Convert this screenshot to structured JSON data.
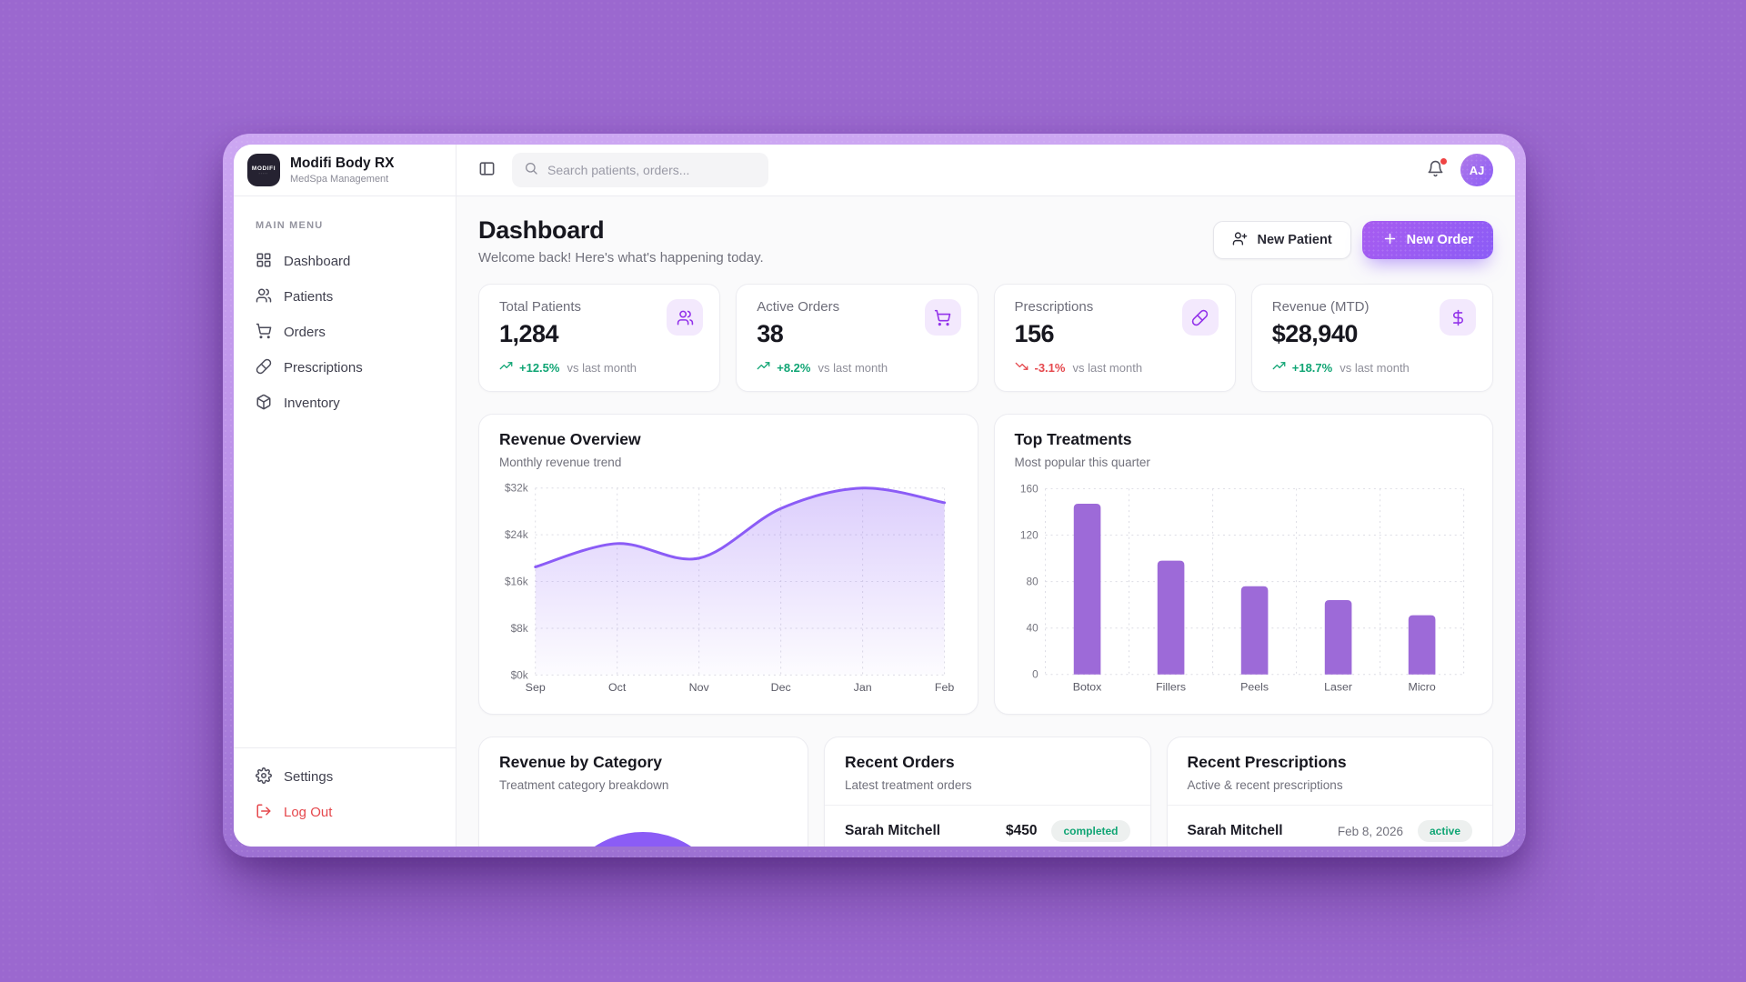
{
  "app": {
    "logo_text": "MODIFI",
    "name": "Modifi Body RX",
    "tagline": "MedSpa Management"
  },
  "sidebar": {
    "section_label": "MAIN MENU",
    "items": [
      {
        "label": "Dashboard",
        "icon": "layout-grid-icon"
      },
      {
        "label": "Patients",
        "icon": "users-icon"
      },
      {
        "label": "Orders",
        "icon": "shopping-cart-icon"
      },
      {
        "label": "Prescriptions",
        "icon": "pill-icon"
      },
      {
        "label": "Inventory",
        "icon": "package-icon"
      }
    ],
    "settings_label": "Settings",
    "logout_label": "Log Out"
  },
  "header": {
    "search_placeholder": "Search patients, orders...",
    "avatar_initials": "AJ"
  },
  "page": {
    "title": "Dashboard",
    "subtitle": "Welcome back! Here's what's happening today.",
    "new_patient_label": "New Patient",
    "new_order_label": "New Order"
  },
  "stats": [
    {
      "label": "Total Patients",
      "value": "1,284",
      "trend": "+12.5%",
      "direction": "up",
      "note": "vs last month",
      "icon": "users-icon"
    },
    {
      "label": "Active Orders",
      "value": "38",
      "trend": "+8.2%",
      "direction": "up",
      "note": "vs last month",
      "icon": "shopping-cart-icon"
    },
    {
      "label": "Prescriptions",
      "value": "156",
      "trend": "-3.1%",
      "direction": "down",
      "note": "vs last month",
      "icon": "pill-icon"
    },
    {
      "label": "Revenue (MTD)",
      "value": "$28,940",
      "trend": "+18.7%",
      "direction": "up",
      "note": "vs last month",
      "icon": "dollar-icon"
    }
  ],
  "chart_data": [
    {
      "type": "area",
      "title": "Revenue Overview",
      "subtitle": "Monthly revenue trend",
      "x": [
        "Sep",
        "Oct",
        "Nov",
        "Dec",
        "Jan",
        "Feb"
      ],
      "values_thousands": [
        18.5,
        22.5,
        20,
        28.5,
        32,
        29.5
      ],
      "ytick_labels": [
        "$0k",
        "$8k",
        "$16k",
        "$24k",
        "$32k"
      ],
      "ylim_thousands": [
        0,
        32
      ],
      "grid": "dashed",
      "line_color": "#8b5cf6"
    },
    {
      "type": "bar",
      "title": "Top Treatments",
      "subtitle": "Most popular this quarter",
      "categories": [
        "Botox",
        "Fillers",
        "Peels",
        "Laser",
        "Micro"
      ],
      "values": [
        147,
        98,
        76,
        64,
        51
      ],
      "yticks": [
        0,
        40,
        80,
        120,
        160
      ],
      "ylim": [
        0,
        160
      ],
      "grid": "dashed",
      "bar_color": "#9d6ad8"
    },
    {
      "type": "pie",
      "title": "Revenue by Category",
      "subtitle": "Treatment category breakdown",
      "note": "donut chart cut off by window bottom edge; only top arc visible",
      "color": "#8b5cf6"
    }
  ],
  "bottom": {
    "orders_card": {
      "title": "Recent Orders",
      "subtitle": "Latest treatment orders",
      "rows": [
        {
          "name": "Sarah Mitchell",
          "amount": "$450",
          "badge": "completed"
        }
      ]
    },
    "rx_card": {
      "title": "Recent Prescriptions",
      "subtitle": "Active & recent prescriptions",
      "rows": [
        {
          "name": "Sarah Mitchell",
          "date": "Feb 8, 2026",
          "badge": "active"
        }
      ]
    }
  },
  "colors": {
    "background": "#9b68cf",
    "accent": "#8b5cf6",
    "accent_dark": "#9333ea",
    "positive": "#10a574",
    "negative": "#e5484d"
  }
}
